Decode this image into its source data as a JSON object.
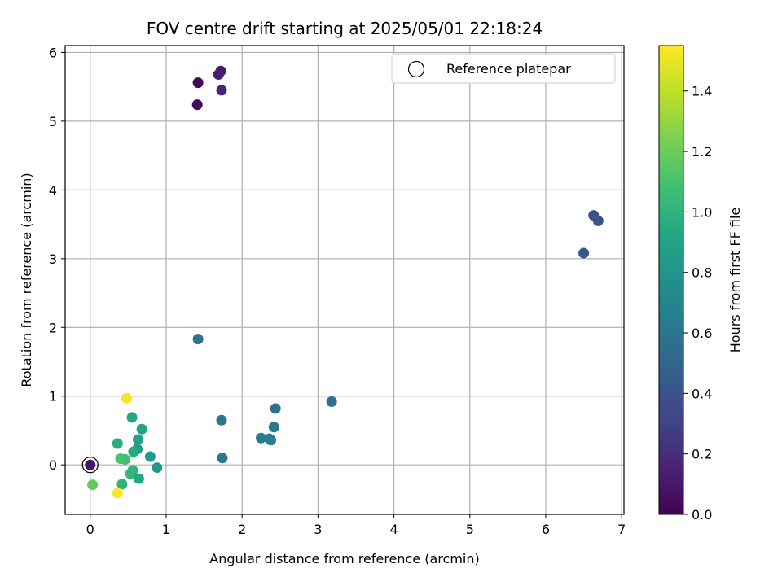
{
  "chart_data": {
    "type": "scatter",
    "title": "FOV centre drift starting at 2025/05/01 22:18:24",
    "xlabel": "Angular distance from reference (arcmin)",
    "ylabel": "Rotation from reference (arcmin)",
    "xlim": [
      -0.33,
      7.03
    ],
    "ylim": [
      -0.72,
      6.1
    ],
    "xticks": [
      0,
      1,
      2,
      3,
      4,
      5,
      6,
      7
    ],
    "yticks": [
      0,
      1,
      2,
      3,
      4,
      5,
      6
    ],
    "grid": true,
    "legend": {
      "position": "top-right",
      "entries": [
        "Reference platepar"
      ]
    },
    "reference_point": {
      "x": 0,
      "y": 0
    },
    "colorbar": {
      "label": "Hours from first FF file",
      "colormap": "viridis",
      "min": 0.0,
      "max": 1.55,
      "ticks": [
        "0.0",
        "0.2",
        "0.4",
        "0.6",
        "0.8",
        "1.0",
        "1.2",
        "1.4"
      ]
    },
    "points": [
      {
        "x": 0.0,
        "y": 0.0,
        "c": 0.08
      },
      {
        "x": 1.42,
        "y": 5.56,
        "c": 0.02
      },
      {
        "x": 1.41,
        "y": 5.24,
        "c": 0.04
      },
      {
        "x": 1.72,
        "y": 5.73,
        "c": 0.12
      },
      {
        "x": 1.69,
        "y": 5.68,
        "c": 0.13
      },
      {
        "x": 1.73,
        "y": 5.45,
        "c": 0.16
      },
      {
        "x": 6.63,
        "y": 3.63,
        "c": 0.38
      },
      {
        "x": 6.69,
        "y": 3.55,
        "c": 0.39
      },
      {
        "x": 6.5,
        "y": 3.08,
        "c": 0.41
      },
      {
        "x": 1.42,
        "y": 1.83,
        "c": 0.58
      },
      {
        "x": 3.18,
        "y": 0.92,
        "c": 0.57
      },
      {
        "x": 2.44,
        "y": 0.82,
        "c": 0.58
      },
      {
        "x": 1.73,
        "y": 0.65,
        "c": 0.6
      },
      {
        "x": 2.42,
        "y": 0.55,
        "c": 0.62
      },
      {
        "x": 2.25,
        "y": 0.39,
        "c": 0.64
      },
      {
        "x": 2.36,
        "y": 0.38,
        "c": 0.65
      },
      {
        "x": 2.38,
        "y": 0.36,
        "c": 0.66
      },
      {
        "x": 1.74,
        "y": 0.1,
        "c": 0.63
      },
      {
        "x": 0.55,
        "y": 0.69,
        "c": 0.92
      },
      {
        "x": 0.68,
        "y": 0.52,
        "c": 0.9
      },
      {
        "x": 0.63,
        "y": 0.37,
        "c": 0.88
      },
      {
        "x": 0.36,
        "y": 0.31,
        "c": 0.96
      },
      {
        "x": 0.62,
        "y": 0.23,
        "c": 0.86
      },
      {
        "x": 0.57,
        "y": 0.19,
        "c": 0.95
      },
      {
        "x": 0.79,
        "y": 0.12,
        "c": 0.84
      },
      {
        "x": 0.4,
        "y": 0.09,
        "c": 1.1
      },
      {
        "x": 0.46,
        "y": 0.08,
        "c": 1.08
      },
      {
        "x": 0.88,
        "y": -0.04,
        "c": 0.82
      },
      {
        "x": 0.56,
        "y": -0.08,
        "c": 1.0
      },
      {
        "x": 0.53,
        "y": -0.13,
        "c": 1.02
      },
      {
        "x": 0.64,
        "y": -0.2,
        "c": 0.92
      },
      {
        "x": 0.42,
        "y": -0.28,
        "c": 1.0
      },
      {
        "x": 0.03,
        "y": -0.29,
        "c": 1.18
      },
      {
        "x": 0.48,
        "y": 0.97,
        "c": 1.53
      },
      {
        "x": 0.36,
        "y": -0.41,
        "c": 1.54
      }
    ]
  }
}
